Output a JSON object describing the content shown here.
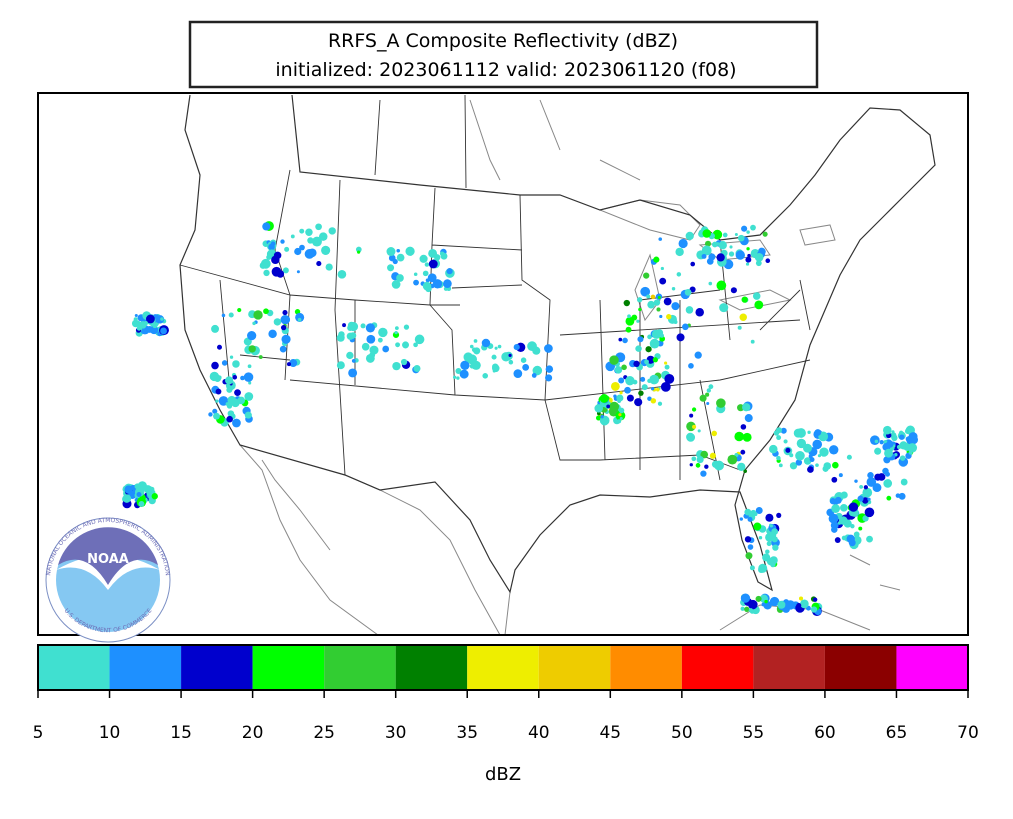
{
  "title": {
    "line1": "RRFS_A Composite Reflectivity (dBZ)",
    "line2": "initialized: 2023061112 valid: 2023061120 (f08)"
  },
  "logo": {
    "name": "NOAA",
    "ring_top": "NATIONAL OCEANIC AND ATMOSPHERIC ADMINISTRATION",
    "ring_bottom": "U.S. DEPARTMENT OF COMMERCE"
  },
  "colorbar": {
    "label": "dBZ",
    "lim": [
      5,
      70
    ],
    "ticks": [
      5,
      10,
      15,
      20,
      25,
      30,
      35,
      40,
      45,
      50,
      55,
      60,
      65,
      70
    ],
    "colors": [
      "#40e0d0",
      "#1e90ff",
      "#0000cd",
      "#00ff00",
      "#32cd32",
      "#008000",
      "#eeee00",
      "#eecc00",
      "#ff8c00",
      "#ff0000",
      "#b22222",
      "#8b0000",
      "#ff00ff"
    ]
  }
}
